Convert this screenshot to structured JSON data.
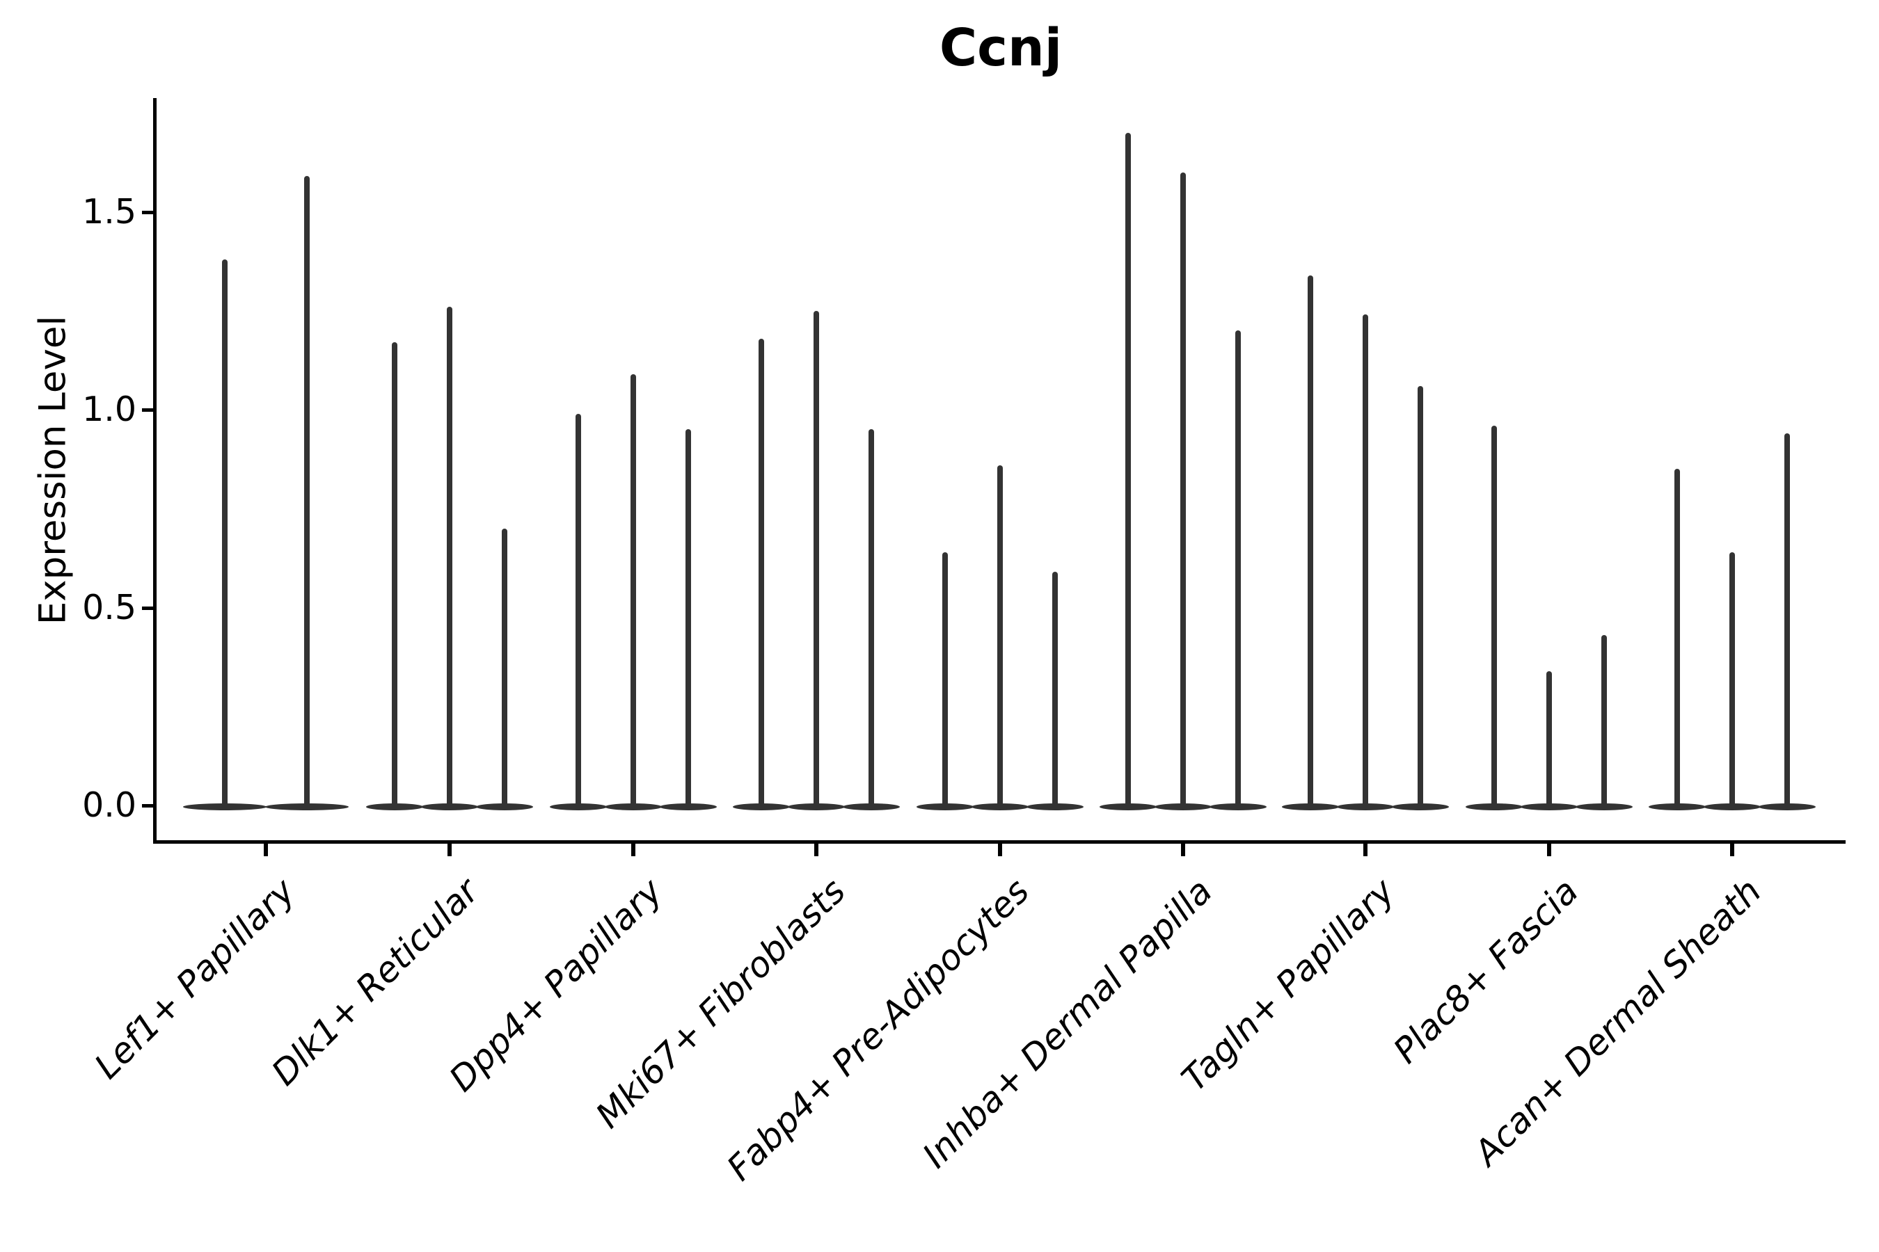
{
  "title": "Ccnj",
  "y_axis": {
    "label": "Expression Level",
    "tick_labels": [
      "0.0",
      "0.5",
      "1.0",
      "1.5"
    ],
    "tick_values": [
      0.0,
      0.5,
      1.0,
      1.5
    ]
  },
  "chart_data": {
    "type": "violin",
    "title": "Ccnj",
    "xlabel": "",
    "ylabel": "Expression Level",
    "ylim": [
      -0.09,
      1.79
    ],
    "yticks": [
      0.0,
      0.5,
      1.0,
      1.5
    ],
    "grid": false,
    "legend": "none",
    "style": "needle-shaped violins (expression concentrated at 0 with a thin spike to the max); 2 violins in the first category, 3 in all others; dark gray fill on white background; x tick labels rotated 45 degrees, italic",
    "categories": [
      "Lef1+ Papillary",
      "Dlk1+ Reticular",
      "Dpp4+ Papillary",
      "Mki67+ Fibroblasts",
      "Fabp4+ Pre-Adipocytes",
      "Inhba+ Dermal Papilla",
      "Tagln+ Papillary",
      "Plac8+ Fascia",
      "Acan+ Dermal Sheath"
    ],
    "groups": [
      {
        "category": "Lef1+ Papillary",
        "spike_max_values": [
          1.38,
          1.59
        ]
      },
      {
        "category": "Dlk1+ Reticular",
        "spike_max_values": [
          1.17,
          1.26,
          0.7
        ]
      },
      {
        "category": "Dpp4+ Papillary",
        "spike_max_values": [
          0.99,
          1.09,
          0.95
        ]
      },
      {
        "category": "Mki67+ Fibroblasts",
        "spike_max_values": [
          1.18,
          1.25,
          0.95
        ]
      },
      {
        "category": "Fabp4+ Pre-Adipocytes",
        "spike_max_values": [
          0.64,
          0.86,
          0.59
        ]
      },
      {
        "category": "Inhba+ Dermal Papilla",
        "spike_max_values": [
          1.7,
          1.6,
          1.2
        ]
      },
      {
        "category": "Tagln+ Papillary",
        "spike_max_values": [
          1.34,
          1.24,
          1.06
        ]
      },
      {
        "category": "Plac8+ Fascia",
        "spike_max_values": [
          0.96,
          0.34,
          0.43
        ]
      },
      {
        "category": "Acan+ Dermal Sheath",
        "spike_max_values": [
          0.85,
          0.64,
          0.94
        ]
      }
    ],
    "colors": {
      "violin_fill": "#333333",
      "axis": "#000000",
      "text": "#000000",
      "background": "#ffffff"
    }
  }
}
